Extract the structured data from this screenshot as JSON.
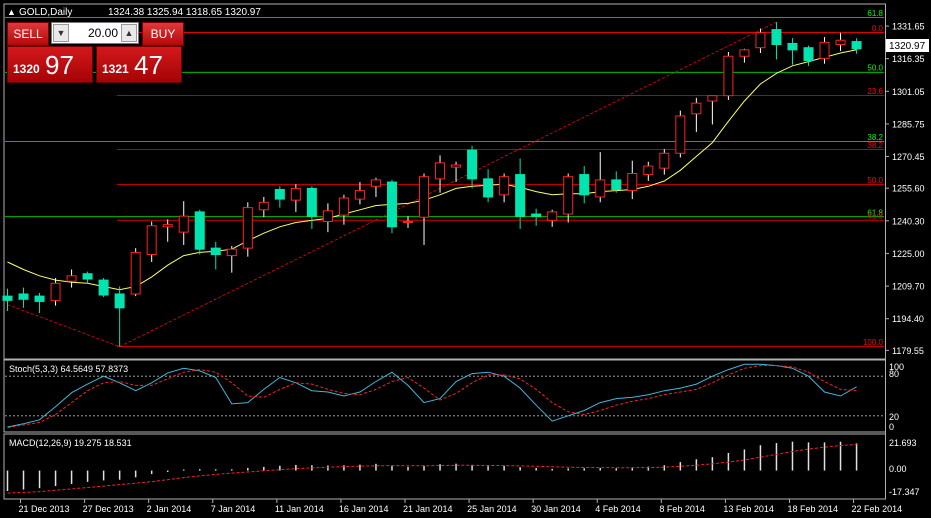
{
  "header": {
    "symbol_label": "GOLD,Daily",
    "ohlc": "1324.38 1325.94 1318.65 1320.97",
    "triangle": "▲"
  },
  "trade_panel": {
    "sell_label": "SELL",
    "buy_label": "BUY",
    "lot_value": "20.00",
    "spin_down_icon": "▼",
    "spin_up_icon": "▲",
    "sell_price_prefix": "1320",
    "sell_price_main": "97",
    "buy_price_prefix": "1321",
    "buy_price_main": "47"
  },
  "current_price_label": "1320.97",
  "indicators": {
    "stoch_label": "Stoch(5,3,3) 64.5649 57.8373",
    "stoch_axis": [
      "100",
      "80",
      "20",
      "0"
    ],
    "macd_label": "MACD(12,26,9) 19.275 18.531",
    "macd_axis": [
      "21.693",
      "0.00",
      "-17.347"
    ]
  },
  "fibonacci": [
    {
      "label": "61.8",
      "price": 1335.6,
      "color": "#00ff00"
    },
    {
      "label": "0.0",
      "price": 1328.6,
      "color": "#ff0000"
    },
    {
      "label": "50.0",
      "price": 1310.0,
      "color": "#00ff00"
    },
    {
      "label": "23.6",
      "price": 1299.1,
      "color": "#ff0000"
    },
    {
      "label": "38.2",
      "price": 1277.5,
      "color": "#00ff00"
    },
    {
      "label": "38.2",
      "price": 1273.7,
      "color": "#ff0000"
    },
    {
      "label": "50.0",
      "price": 1257.4,
      "color": "#ff0000"
    },
    {
      "label": "61.8",
      "price": 1242.2,
      "color": "#00ff00"
    },
    {
      "label": "61.8",
      "price": 1240.6,
      "color": "#ff0000"
    },
    {
      "label": "100.0",
      "price": 1181.3,
      "color": "#ff0000"
    }
  ],
  "chart_data": {
    "type": "candlestick",
    "price_axis_ticks": [
      1331.65,
      1316.35,
      1301.05,
      1285.75,
      1270.45,
      1255.6,
      1240.3,
      1225.0,
      1209.7,
      1194.4,
      1179.55
    ],
    "price_axis_labels": [
      "1331.65",
      "1316.35",
      "1301.05",
      "1285.75",
      "1270.45",
      "1255.60",
      "1240.30",
      "1225.00",
      "1209.70",
      "1194.40",
      "1179.55"
    ],
    "price_range": [
      1175.5,
      1342.0
    ],
    "date_labels": [
      {
        "label": "21 Dec 2013",
        "index": 1
      },
      {
        "label": "27 Dec 2013",
        "index": 5
      },
      {
        "label": "2 Jan 2014",
        "index": 9
      },
      {
        "label": "7 Jan 2014",
        "index": 13
      },
      {
        "label": "11 Jan 2014",
        "index": 17
      },
      {
        "label": "16 Jan 2014",
        "index": 21
      },
      {
        "label": "21 Jan 2014",
        "index": 25
      },
      {
        "label": "25 Jan 2014",
        "index": 29
      },
      {
        "label": "30 Jan 2014",
        "index": 33
      },
      {
        "label": "4 Feb 2014",
        "index": 37
      },
      {
        "label": "8 Feb 2014",
        "index": 41
      },
      {
        "label": "13 Feb 2014",
        "index": 45
      },
      {
        "label": "18 Feb 2014",
        "index": 49
      },
      {
        "label": "22 Feb 2014",
        "index": 53
      }
    ],
    "candles": [
      {
        "o": 1205.0,
        "h": 1208.5,
        "l": 1198.0,
        "c": 1203.0
      },
      {
        "o": 1206.0,
        "h": 1209.0,
        "l": 1199.5,
        "c": 1203.5
      },
      {
        "o": 1205.0,
        "h": 1206.5,
        "l": 1197.0,
        "c": 1202.5
      },
      {
        "o": 1203.0,
        "h": 1213.5,
        "l": 1200.5,
        "c": 1211.0
      },
      {
        "o": 1212.0,
        "h": 1217.5,
        "l": 1209.0,
        "c": 1214.5
      },
      {
        "o": 1215.5,
        "h": 1216.5,
        "l": 1211.0,
        "c": 1213.0
      },
      {
        "o": 1212.5,
        "h": 1213.5,
        "l": 1204.5,
        "c": 1205.5
      },
      {
        "o": 1206.0,
        "h": 1209.5,
        "l": 1181.3,
        "c": 1199.5
      },
      {
        "o": 1206.0,
        "h": 1227.5,
        "l": 1205.0,
        "c": 1225.5
      },
      {
        "o": 1224.5,
        "h": 1240.0,
        "l": 1221.0,
        "c": 1238.0
      },
      {
        "o": 1237.5,
        "h": 1241.0,
        "l": 1230.5,
        "c": 1238.5
      },
      {
        "o": 1235.0,
        "h": 1249.5,
        "l": 1229.0,
        "c": 1242.5
      },
      {
        "o": 1244.5,
        "h": 1245.5,
        "l": 1224.5,
        "c": 1227.0
      },
      {
        "o": 1227.5,
        "h": 1230.5,
        "l": 1217.5,
        "c": 1224.5
      },
      {
        "o": 1224.0,
        "h": 1228.5,
        "l": 1216.0,
        "c": 1227.0
      },
      {
        "o": 1227.5,
        "h": 1249.0,
        "l": 1223.5,
        "c": 1246.5
      },
      {
        "o": 1245.5,
        "h": 1251.5,
        "l": 1242.0,
        "c": 1249.0
      },
      {
        "o": 1255.0,
        "h": 1256.5,
        "l": 1246.5,
        "c": 1250.5
      },
      {
        "o": 1250.0,
        "h": 1257.5,
        "l": 1244.5,
        "c": 1255.5
      },
      {
        "o": 1255.5,
        "h": 1256.5,
        "l": 1236.5,
        "c": 1242.5
      },
      {
        "o": 1240.0,
        "h": 1248.5,
        "l": 1235.0,
        "c": 1245.0
      },
      {
        "o": 1243.0,
        "h": 1252.5,
        "l": 1238.5,
        "c": 1251.0
      },
      {
        "o": 1250.5,
        "h": 1258.5,
        "l": 1248.0,
        "c": 1254.5
      },
      {
        "o": 1256.5,
        "h": 1260.5,
        "l": 1251.5,
        "c": 1259.5
      },
      {
        "o": 1258.5,
        "h": 1259.5,
        "l": 1234.5,
        "c": 1237.5
      },
      {
        "o": 1240.0,
        "h": 1242.5,
        "l": 1237.0,
        "c": 1240.0
      },
      {
        "o": 1242.0,
        "h": 1262.5,
        "l": 1229.0,
        "c": 1261.0
      },
      {
        "o": 1260.0,
        "h": 1271.0,
        "l": 1253.5,
        "c": 1267.5
      },
      {
        "o": 1265.5,
        "h": 1268.0,
        "l": 1258.5,
        "c": 1266.5
      },
      {
        "o": 1273.5,
        "h": 1275.5,
        "l": 1255.5,
        "c": 1260.0
      },
      {
        "o": 1260.0,
        "h": 1264.5,
        "l": 1249.0,
        "c": 1251.5
      },
      {
        "o": 1252.5,
        "h": 1262.5,
        "l": 1249.0,
        "c": 1261.0
      },
      {
        "o": 1262.0,
        "h": 1269.5,
        "l": 1236.5,
        "c": 1242.5
      },
      {
        "o": 1243.5,
        "h": 1246.0,
        "l": 1238.0,
        "c": 1242.5
      },
      {
        "o": 1240.5,
        "h": 1245.5,
        "l": 1237.5,
        "c": 1244.5
      },
      {
        "o": 1243.5,
        "h": 1262.5,
        "l": 1239.5,
        "c": 1261.0
      },
      {
        "o": 1262.0,
        "h": 1266.0,
        "l": 1248.5,
        "c": 1252.5
      },
      {
        "o": 1251.5,
        "h": 1272.5,
        "l": 1249.0,
        "c": 1259.5
      },
      {
        "o": 1259.5,
        "h": 1263.5,
        "l": 1253.5,
        "c": 1255.0
      },
      {
        "o": 1254.5,
        "h": 1268.5,
        "l": 1250.5,
        "c": 1262.5
      },
      {
        "o": 1262.0,
        "h": 1268.0,
        "l": 1259.0,
        "c": 1266.0
      },
      {
        "o": 1265.0,
        "h": 1274.0,
        "l": 1262.0,
        "c": 1272.0
      },
      {
        "o": 1272.0,
        "h": 1292.0,
        "l": 1270.0,
        "c": 1289.5
      },
      {
        "o": 1290.5,
        "h": 1298.0,
        "l": 1282.0,
        "c": 1295.5
      },
      {
        "o": 1296.5,
        "h": 1298.5,
        "l": 1285.5,
        "c": 1299.0
      },
      {
        "o": 1299.0,
        "h": 1319.5,
        "l": 1297.0,
        "c": 1317.5
      },
      {
        "o": 1317.5,
        "h": 1321.0,
        "l": 1314.5,
        "c": 1320.5
      },
      {
        "o": 1321.5,
        "h": 1330.5,
        "l": 1319.0,
        "c": 1328.5
      },
      {
        "o": 1330.0,
        "h": 1333.5,
        "l": 1316.0,
        "c": 1323.0
      },
      {
        "o": 1323.5,
        "h": 1326.0,
        "l": 1313.5,
        "c": 1320.5
      },
      {
        "o": 1321.5,
        "h": 1322.5,
        "l": 1313.0,
        "c": 1315.5
      },
      {
        "o": 1316.5,
        "h": 1326.5,
        "l": 1314.0,
        "c": 1324.0
      },
      {
        "o": 1323.0,
        "h": 1328.5,
        "l": 1320.0,
        "c": 1325.0
      },
      {
        "o": 1324.38,
        "h": 1325.94,
        "l": 1318.65,
        "c": 1320.97
      }
    ],
    "moving_average": [
      1221.0,
      1217.5,
      1214.5,
      1212.5,
      1211.5,
      1211.0,
      1209.5,
      1208.0,
      1209.5,
      1214.0,
      1219.5,
      1224.0,
      1225.5,
      1226.0,
      1227.0,
      1231.0,
      1234.5,
      1237.5,
      1239.5,
      1240.5,
      1241.5,
      1243.5,
      1245.5,
      1247.5,
      1248.0,
      1248.5,
      1250.0,
      1252.5,
      1255.5,
      1256.5,
      1257.0,
      1257.5,
      1256.0,
      1254.0,
      1252.5,
      1253.0,
      1253.0,
      1254.0,
      1254.5,
      1255.0,
      1256.5,
      1259.0,
      1264.0,
      1270.5,
      1277.0,
      1287.0,
      1296.5,
      1304.5,
      1309.5,
      1313.0,
      1315.0,
      1317.0,
      1319.0,
      1320.5
    ],
    "fib_trend_line": {
      "from_index": 7,
      "from_price": 1181.3,
      "to_index": 48,
      "to_price": 1333.5
    },
    "stochastic": {
      "range": [
        0,
        100
      ],
      "levels": [
        80,
        20
      ],
      "k": [
        3,
        8,
        14,
        34,
        55,
        68,
        80,
        70,
        58,
        70,
        85,
        92,
        88,
        78,
        38,
        40,
        60,
        78,
        70,
        58,
        56,
        50,
        56,
        72,
        86,
        66,
        40,
        46,
        72,
        84,
        86,
        80,
        62,
        36,
        12,
        20,
        28,
        40,
        46,
        48,
        52,
        58,
        62,
        68,
        80,
        90,
        98,
        98,
        96,
        92,
        80,
        56,
        50,
        64
      ],
      "d": [
        2,
        6,
        10,
        22,
        40,
        58,
        70,
        72,
        66,
        66,
        76,
        86,
        90,
        86,
        70,
        50,
        48,
        60,
        70,
        68,
        60,
        54,
        52,
        60,
        72,
        78,
        62,
        44,
        54,
        70,
        82,
        82,
        76,
        60,
        40,
        26,
        22,
        28,
        36,
        42,
        46,
        52,
        56,
        60,
        70,
        82,
        92,
        96,
        96,
        94,
        86,
        72,
        60,
        58
      ]
    },
    "macd": {
      "range": [
        -17.347,
        21.693
      ],
      "histogram": [
        -14.5,
        -13.5,
        -12.5,
        -11.0,
        -9.5,
        -8.0,
        -7.0,
        -6.5,
        -4.8,
        -2.5,
        -1.0,
        0.8,
        1.0,
        0.9,
        0.9,
        1.8,
        2.6,
        3.4,
        4.0,
        3.8,
        3.6,
        3.8,
        4.2,
        4.8,
        3.2,
        2.6,
        3.4,
        4.5,
        4.9,
        4.0,
        3.1,
        3.4,
        2.4,
        1.8,
        1.2,
        1.5,
        1.6,
        1.8,
        1.6,
        2.2,
        2.8,
        3.8,
        6.0,
        8.0,
        9.5,
        12.5,
        15.0,
        18.0,
        19.5,
        20.5,
        20.0,
        20.0,
        20.5,
        19.3
      ],
      "signal": [
        -16.0,
        -15.5,
        -15.0,
        -14.0,
        -13.0,
        -12.0,
        -11.0,
        -10.0,
        -9.0,
        -7.8,
        -6.5,
        -5.0,
        -3.8,
        -2.7,
        -1.8,
        -1.0,
        -0.2,
        0.6,
        1.3,
        1.9,
        2.4,
        2.8,
        3.1,
        3.4,
        3.5,
        3.4,
        3.4,
        3.5,
        3.7,
        3.7,
        3.6,
        3.5,
        3.3,
        3.0,
        2.7,
        2.4,
        2.2,
        2.1,
        2.0,
        2.0,
        2.1,
        2.4,
        3.0,
        3.8,
        4.8,
        6.0,
        7.5,
        9.5,
        11.5,
        13.5,
        15.2,
        16.6,
        17.8,
        18.5
      ]
    }
  }
}
